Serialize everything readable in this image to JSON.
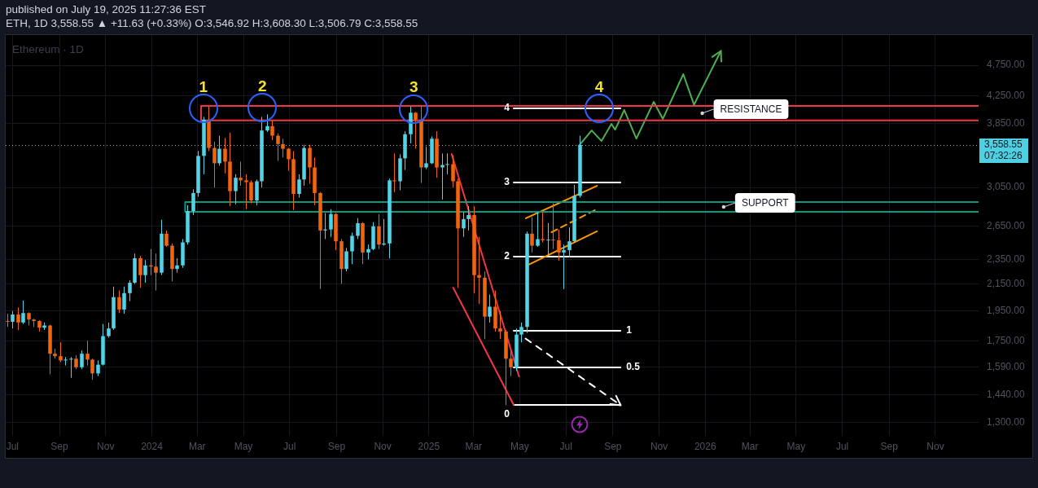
{
  "chart_data": {
    "type": "candlestick",
    "title": "Ethereum · 1D",
    "subtitle": "ETH, 1D 3,558.55 ▲ +11.63 (+0.33%) O:3,546.92 H:3,608.30 L:3,506.79 C:3,558.55",
    "annotations": [
      "published on July 19, 2025 11:27:36 EST",
      "07:32:26",
      {
        "text": "1",
        "x": "2024-03-09",
        "y": 4060
      },
      {
        "text": "2",
        "x": "2024-05-26",
        "y": 4070
      },
      {
        "text": "3",
        "x": "2024-12-12",
        "y": 4050
      },
      {
        "text": "4",
        "x": "2025-08-14",
        "y": 4060
      },
      "RESISTANCE",
      "SUPPORT"
    ],
    "xlim": [
      "2023-06-22",
      "2026-12-28"
    ],
    "xticks": [
      {
        "value": "2023-07-01",
        "label": "Jul"
      },
      {
        "value": "2023-09-01",
        "label": "Sep"
      },
      {
        "value": "2023-11-01",
        "label": "Nov"
      },
      {
        "value": "2024-01-01",
        "label": "2024"
      },
      {
        "value": "2024-03-01",
        "label": "Mar"
      },
      {
        "value": "2024-05-01",
        "label": "May"
      },
      {
        "value": "2024-07-01",
        "label": "Jul"
      },
      {
        "value": "2024-09-01",
        "label": "Sep"
      },
      {
        "value": "2024-11-01",
        "label": "Nov"
      },
      {
        "value": "2025-01-01",
        "label": "2025"
      },
      {
        "value": "2025-03-01",
        "label": "Mar"
      },
      {
        "value": "2025-05-01",
        "label": "May"
      },
      {
        "value": "2025-07-01",
        "label": "Jul"
      },
      {
        "value": "2025-09-01",
        "label": "Sep"
      },
      {
        "value": "2025-11-01",
        "label": "Nov"
      },
      {
        "value": "2026-01-01",
        "label": "2026"
      },
      {
        "value": "2026-03-01",
        "label": "Mar"
      },
      {
        "value": "2026-05-01",
        "label": "May"
      },
      {
        "value": "2026-07-01",
        "label": "Jul"
      },
      {
        "value": "2026-09-01",
        "label": "Sep"
      },
      {
        "value": "2026-11-01",
        "label": "Nov"
      }
    ],
    "ylim": [
      1240,
      5300
    ],
    "log": true,
    "yticks": [
      {
        "value": 1300,
        "label": "1,300.00"
      },
      {
        "value": 1440,
        "label": "1,440.00"
      },
      {
        "value": 1590,
        "label": "1,590.00"
      },
      {
        "value": 1750,
        "label": "1,750.00"
      },
      {
        "value": 1950,
        "label": "1,950.00"
      },
      {
        "value": 2150,
        "label": "2,150.00"
      },
      {
        "value": 2350,
        "label": "2,350.00"
      },
      {
        "value": 2650,
        "label": "2,650.00"
      },
      {
        "value": 3050,
        "label": "3,050.00"
      },
      {
        "value": 3850,
        "label": "3,850.00"
      },
      {
        "value": 4250,
        "label": "4,250.00"
      },
      {
        "value": 4750,
        "label": "4,750.00"
      }
    ],
    "grid": true,
    "legend": false,
    "marker": "none",
    "ref_lines": [
      {
        "axis": "y",
        "value": 3558.55,
        "label": "3,558.55",
        "color": "#4dd0e1",
        "line_style": "dotted"
      }
    ],
    "series": [
      {
        "x": [
          "2023-06-24",
          "2023-07-01",
          "2023-07-08",
          "2023-07-15",
          "2023-07-22",
          "2023-07-29",
          "2023-08-05",
          "2023-08-12",
          "2023-08-19",
          "2023-08-26",
          "2023-09-02",
          "2023-09-09",
          "2023-09-16",
          "2023-09-23",
          "2023-09-30",
          "2023-10-07",
          "2023-10-14",
          "2023-10-21",
          "2023-10-28",
          "2023-11-04",
          "2023-11-11",
          "2023-11-18",
          "2023-11-25",
          "2023-12-02",
          "2023-12-09",
          "2023-12-16",
          "2023-12-23",
          "2023-12-30",
          "2024-01-06",
          "2024-01-13",
          "2024-01-20",
          "2024-01-27",
          "2024-02-03",
          "2024-02-10",
          "2024-02-17",
          "2024-02-24",
          "2024-03-02",
          "2024-03-09",
          "2024-03-16",
          "2024-03-23",
          "2024-03-30",
          "2024-04-06",
          "2024-04-13",
          "2024-04-20",
          "2024-04-27",
          "2024-05-04",
          "2024-05-11",
          "2024-05-18",
          "2024-05-25",
          "2024-06-01",
          "2024-06-08",
          "2024-06-15",
          "2024-06-22",
          "2024-06-29",
          "2024-07-06",
          "2024-07-13",
          "2024-07-20",
          "2024-07-27",
          "2024-08-03",
          "2024-08-10",
          "2024-08-17",
          "2024-08-24",
          "2024-08-31",
          "2024-09-07",
          "2024-09-14",
          "2024-09-21",
          "2024-09-28",
          "2024-10-05",
          "2024-10-12",
          "2024-10-19",
          "2024-10-26",
          "2024-11-02",
          "2024-11-09",
          "2024-11-16",
          "2024-11-23",
          "2024-11-30",
          "2024-12-07",
          "2024-12-14",
          "2024-12-21",
          "2024-12-28",
          "2025-01-04",
          "2025-01-11",
          "2025-01-18",
          "2025-01-25",
          "2025-02-01",
          "2025-02-08",
          "2025-02-15",
          "2025-02-22",
          "2025-03-01",
          "2025-03-08",
          "2025-03-15",
          "2025-03-22",
          "2025-03-29",
          "2025-04-05",
          "2025-04-12",
          "2025-04-19",
          "2025-04-26",
          "2025-05-03",
          "2025-05-10",
          "2025-05-17",
          "2025-05-24",
          "2025-05-31",
          "2025-06-07",
          "2025-06-14",
          "2025-06-21",
          "2025-06-28",
          "2025-07-05",
          "2025-07-12",
          "2025-07-19"
        ],
        "ohlc": [
          [
            1880,
            1930,
            1840,
            1875
          ],
          [
            1875,
            1950,
            1830,
            1925
          ],
          [
            1925,
            1975,
            1820,
            1870
          ],
          [
            1870,
            2025,
            1860,
            1935
          ],
          [
            1935,
            1940,
            1850,
            1890
          ],
          [
            1890,
            1895,
            1840,
            1880
          ],
          [
            1880,
            1885,
            1810,
            1835
          ],
          [
            1835,
            1870,
            1820,
            1850
          ],
          [
            1850,
            1855,
            1550,
            1670
          ],
          [
            1670,
            1700,
            1640,
            1655
          ],
          [
            1655,
            1740,
            1620,
            1630
          ],
          [
            1630,
            1650,
            1600,
            1635
          ],
          [
            1635,
            1650,
            1530,
            1640
          ],
          [
            1640,
            1660,
            1580,
            1590
          ],
          [
            1590,
            1690,
            1580,
            1670
          ],
          [
            1670,
            1750,
            1600,
            1635
          ],
          [
            1635,
            1640,
            1520,
            1555
          ],
          [
            1555,
            1630,
            1540,
            1605
          ],
          [
            1605,
            1860,
            1600,
            1780
          ],
          [
            1780,
            1870,
            1770,
            1830
          ],
          [
            1830,
            2130,
            1820,
            2050
          ],
          [
            2050,
            2100,
            1935,
            1960
          ],
          [
            1960,
            2130,
            1930,
            2080
          ],
          [
            2080,
            2180,
            2020,
            2160
          ],
          [
            2160,
            2400,
            2150,
            2360
          ],
          [
            2360,
            2380,
            2120,
            2220
          ],
          [
            2220,
            2345,
            2160,
            2300
          ],
          [
            2300,
            2440,
            2220,
            2290
          ],
          [
            2290,
            2400,
            2100,
            2240
          ],
          [
            2240,
            2715,
            2220,
            2580
          ],
          [
            2580,
            2610,
            2460,
            2470
          ],
          [
            2470,
            2490,
            2170,
            2270
          ],
          [
            2270,
            2360,
            2240,
            2300
          ],
          [
            2300,
            2530,
            2280,
            2500
          ],
          [
            2500,
            2860,
            2480,
            2800
          ],
          [
            2800,
            3030,
            2760,
            2990
          ],
          [
            2990,
            3480,
            2950,
            3420
          ],
          [
            3420,
            3940,
            3200,
            3900
          ],
          [
            3900,
            4090,
            3480,
            3520
          ],
          [
            3520,
            3600,
            3050,
            3330
          ],
          [
            3330,
            3680,
            3300,
            3510
          ],
          [
            3510,
            3650,
            3210,
            3350
          ],
          [
            3350,
            3720,
            2850,
            3010
          ],
          [
            3010,
            3200,
            2870,
            3160
          ],
          [
            3160,
            3350,
            3070,
            3130
          ],
          [
            3130,
            3200,
            2820,
            3110
          ],
          [
            3110,
            3130,
            2880,
            2910
          ],
          [
            2910,
            3140,
            2860,
            3120
          ],
          [
            3120,
            3940,
            3050,
            3750
          ],
          [
            3750,
            3977,
            3730,
            3810
          ],
          [
            3810,
            3890,
            3620,
            3680
          ],
          [
            3680,
            3710,
            3360,
            3570
          ],
          [
            3570,
            3640,
            3400,
            3510
          ],
          [
            3510,
            3520,
            3240,
            3380
          ],
          [
            3380,
            3480,
            2810,
            2980
          ],
          [
            2980,
            3200,
            2940,
            3140
          ],
          [
            3140,
            3560,
            3070,
            3520
          ],
          [
            3520,
            3560,
            3090,
            3280
          ],
          [
            3280,
            3400,
            2860,
            2990
          ],
          [
            2990,
            3000,
            2111,
            2610
          ],
          [
            2610,
            2780,
            2530,
            2620
          ],
          [
            2620,
            2820,
            2550,
            2770
          ],
          [
            2770,
            2780,
            2430,
            2510
          ],
          [
            2510,
            2530,
            2150,
            2270
          ],
          [
            2270,
            2450,
            2250,
            2420
          ],
          [
            2420,
            2590,
            2310,
            2560
          ],
          [
            2560,
            2730,
            2530,
            2680
          ],
          [
            2680,
            2690,
            2310,
            2410
          ],
          [
            2410,
            2480,
            2350,
            2440
          ],
          [
            2440,
            2690,
            2430,
            2650
          ],
          [
            2650,
            2770,
            2440,
            2480
          ],
          [
            2480,
            2720,
            2470,
            2490
          ],
          [
            2490,
            3150,
            2360,
            3130
          ],
          [
            3130,
            3450,
            3000,
            3120
          ],
          [
            3120,
            3440,
            3020,
            3390
          ],
          [
            3390,
            3740,
            3250,
            3700
          ],
          [
            3700,
            4090,
            3580,
            4000
          ],
          [
            4000,
            4010,
            3510,
            3900
          ],
          [
            3900,
            4107,
            3100,
            3280
          ],
          [
            3280,
            3540,
            3260,
            3330
          ],
          [
            3330,
            3670,
            3320,
            3640
          ],
          [
            3640,
            3740,
            3160,
            3280
          ],
          [
            3280,
            3450,
            2920,
            3310
          ],
          [
            3310,
            3450,
            3200,
            3320
          ],
          [
            3320,
            3430,
            3050,
            3120
          ],
          [
            3120,
            3150,
            2120,
            2630
          ],
          [
            2630,
            2790,
            2550,
            2720
          ],
          [
            2720,
            2850,
            2610,
            2760
          ],
          [
            2760,
            2850,
            2080,
            2220
          ],
          [
            2220,
            2550,
            2000,
            2200
          ],
          [
            2200,
            2250,
            1760,
            1910
          ],
          [
            1910,
            2070,
            1870,
            1980
          ],
          [
            1980,
            2100,
            1810,
            1830
          ],
          [
            1830,
            1950,
            1760,
            1810
          ],
          [
            1810,
            1820,
            1385,
            1640
          ],
          [
            1640,
            1690,
            1540,
            1590
          ],
          [
            1590,
            1830,
            1570,
            1790
          ],
          [
            1790,
            1870,
            1740,
            1840
          ],
          [
            1840,
            2600,
            1800,
            2580
          ],
          [
            2580,
            2740,
            2410,
            2470
          ],
          [
            2470,
            2790,
            2460,
            2530
          ],
          [
            2530,
            2790,
            2500,
            2520
          ],
          [
            2520,
            2680,
            2380,
            2525
          ],
          [
            2525,
            2880,
            2440,
            2520
          ],
          [
            2520,
            2620,
            2340,
            2410
          ],
          [
            2410,
            2480,
            2110,
            2430
          ],
          [
            2430,
            2640,
            2370,
            2510
          ],
          [
            2510,
            3080,
            2500,
            2960
          ],
          [
            2960,
            3680,
            2940,
            3558.55
          ]
        ],
        "colors": [
          "#f0650e",
          "#52d3e6",
          "#f0650e",
          "#52d3e6",
          "#f0650e",
          "#f0650e",
          "#f0650e",
          "#52d3e6",
          "#f0650e",
          "#f0650e",
          "#f0650e",
          "#52d3e6",
          "#52d3e6",
          "#f0650e",
          "#52d3e6",
          "#f0650e",
          "#f0650e",
          "#52d3e6",
          "#52d3e6",
          "#52d3e6",
          "#52d3e6",
          "#f0650e",
          "#52d3e6",
          "#52d3e6",
          "#52d3e6",
          "#f0650e",
          "#52d3e6",
          "#f0650e",
          "#f0650e",
          "#52d3e6",
          "#f0650e",
          "#f0650e",
          "#52d3e6",
          "#52d3e6",
          "#52d3e6",
          "#52d3e6",
          "#52d3e6",
          "#52d3e6",
          "#f0650e",
          "#f0650e",
          "#52d3e6",
          "#f0650e",
          "#f0650e",
          "#52d3e6",
          "#f0650e",
          "#f0650e",
          "#f0650e",
          "#52d3e6",
          "#52d3e6",
          "#52d3e6",
          "#f0650e",
          "#f0650e",
          "#f0650e",
          "#f0650e",
          "#f0650e",
          "#52d3e6",
          "#52d3e6",
          "#f0650e",
          "#f0650e",
          "#f0650e",
          "#52d3e6",
          "#52d3e6",
          "#f0650e",
          "#f0650e",
          "#52d3e6",
          "#52d3e6",
          "#52d3e6",
          "#f0650e",
          "#52d3e6",
          "#52d3e6",
          "#f0650e",
          "#52d3e6",
          "#52d3e6",
          "#f0650e",
          "#52d3e6",
          "#52d3e6",
          "#52d3e6",
          "#f0650e",
          "#f0650e",
          "#52d3e6",
          "#52d3e6",
          "#f0650e",
          "#52d3e6",
          "#52d3e6",
          "#f0650e",
          "#f0650e",
          "#52d3e6",
          "#52d3e6",
          "#f0650e",
          "#f0650e",
          "#f0650e",
          "#52d3e6",
          "#f0650e",
          "#f0650e",
          "#f0650e",
          "#f0650e",
          "#52d3e6",
          "#52d3e6",
          "#52d3e6",
          "#f0650e",
          "#52d3e6",
          "#f0650e",
          "#52d3e6",
          "#f0650e",
          "#f0650e",
          "#52d3e6",
          "#52d3e6",
          "#52d3e6",
          "#52d3e6"
        ]
      },
      {
        "type": "line",
        "color": "#f23645",
        "x": [
          "2026-12-28",
          "2024-03-06",
          "2024-03-06",
          "2026-12-28"
        ],
        "values": [
          4098,
          4098,
          3890,
          3890
        ]
      },
      {
        "type": "line",
        "color": "#089981",
        "x": [
          "2026-12-28",
          "2024-02-14",
          "2024-02-14",
          "2026-12-28"
        ],
        "values": [
          2893,
          2893,
          2792,
          2792
        ]
      },
      {
        "type": "line",
        "color": "#f23645",
        "x": [
          "2025-01-31",
          "2025-04-30"
        ],
        "values": [
          3443,
          1538
        ]
      },
      {
        "type": "line",
        "color": "#f23645",
        "x": [
          "2025-02-02",
          "2025-04-23"
        ],
        "values": [
          2122,
          1387
        ]
      },
      {
        "type": "line",
        "color": "#ff9800",
        "x": [
          "2025-05-09",
          "2025-08-11"
        ],
        "values": [
          2728,
          3069
        ]
      },
      {
        "type": "line",
        "color": "#ff9800",
        "line_style": "dashed",
        "x": [
          "2025-06-12",
          "2025-08-08"
        ],
        "values": [
          2594,
          2809
        ]
      },
      {
        "type": "line",
        "color": "#ff9800",
        "x": [
          "2025-05-10",
          "2025-08-11"
        ],
        "values": [
          2298,
          2602
        ]
      },
      {
        "type": "line",
        "name": "4",
        "color": "#ffffff",
        "x": [
          "2025-04-23",
          "2025-09-11"
        ],
        "values": [
          4062,
          4062
        ]
      },
      {
        "type": "line",
        "name": "3",
        "color": "#ffffff",
        "x": [
          "2025-04-23",
          "2025-09-11"
        ],
        "values": [
          3105,
          3105
        ]
      },
      {
        "type": "line",
        "name": "2",
        "color": "#ffffff",
        "x": [
          "2025-04-23",
          "2025-09-11"
        ],
        "values": [
          2374,
          2374
        ]
      },
      {
        "type": "line",
        "name": "1",
        "color": "#ffffff",
        "x": [
          "2025-04-23",
          "2025-09-11"
        ],
        "values": [
          1815,
          1815
        ]
      },
      {
        "type": "line",
        "name": "0.5",
        "color": "#ffffff",
        "x": [
          "2025-04-23",
          "2025-09-11"
        ],
        "values": [
          1589,
          1589
        ]
      },
      {
        "type": "line",
        "name": "0",
        "color": "#ffffff",
        "x": [
          "2025-04-23",
          "2025-09-11"
        ],
        "values": [
          1387,
          1387
        ]
      },
      {
        "type": "line",
        "color": "#4caf50",
        "x": [
          "2025-07-19",
          "2025-08-04",
          "2025-08-17",
          "2025-08-30",
          "2025-09-04",
          "2025-09-16",
          "2025-10-02",
          "2025-10-25",
          "2025-11-06",
          "2025-12-03",
          "2025-12-17"
        ],
        "values": [
          3560,
          3751,
          3610,
          3840,
          3762,
          4039,
          3642,
          4160,
          3911,
          4600,
          4123
        ]
      }
    ]
  }
}
